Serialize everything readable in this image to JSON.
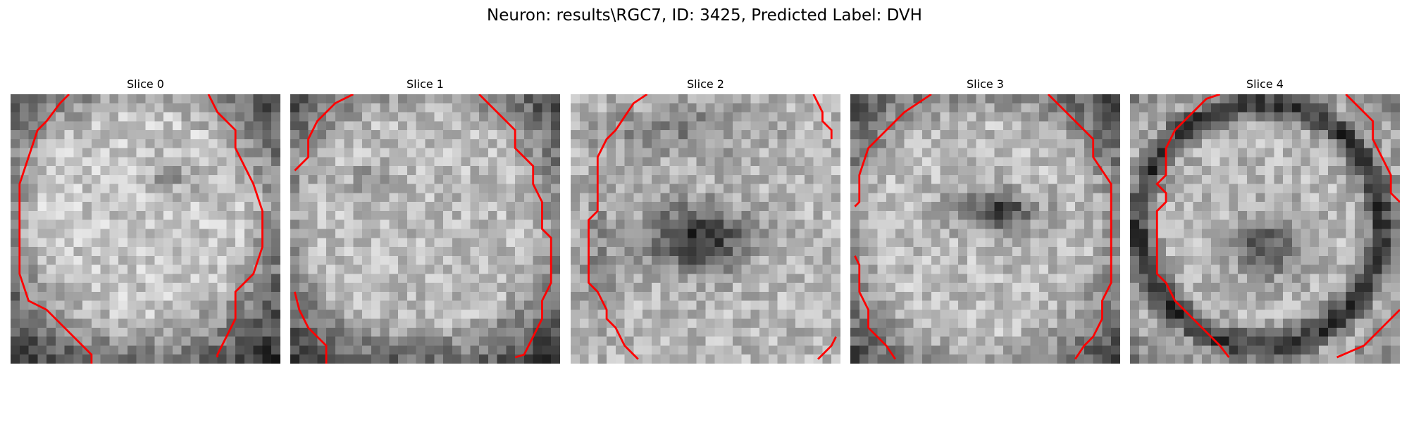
{
  "title": "Neuron: results\\RGC7, ID: 3425, Predicted Label: DVH",
  "panels": [
    {
      "label": "Slice 0"
    },
    {
      "label": "Slice 1"
    },
    {
      "label": "Slice 2"
    },
    {
      "label": "Slice 3"
    },
    {
      "label": "Slice 4"
    }
  ],
  "colors": {
    "contour": "#ff0000",
    "background": "#ffffff"
  }
}
